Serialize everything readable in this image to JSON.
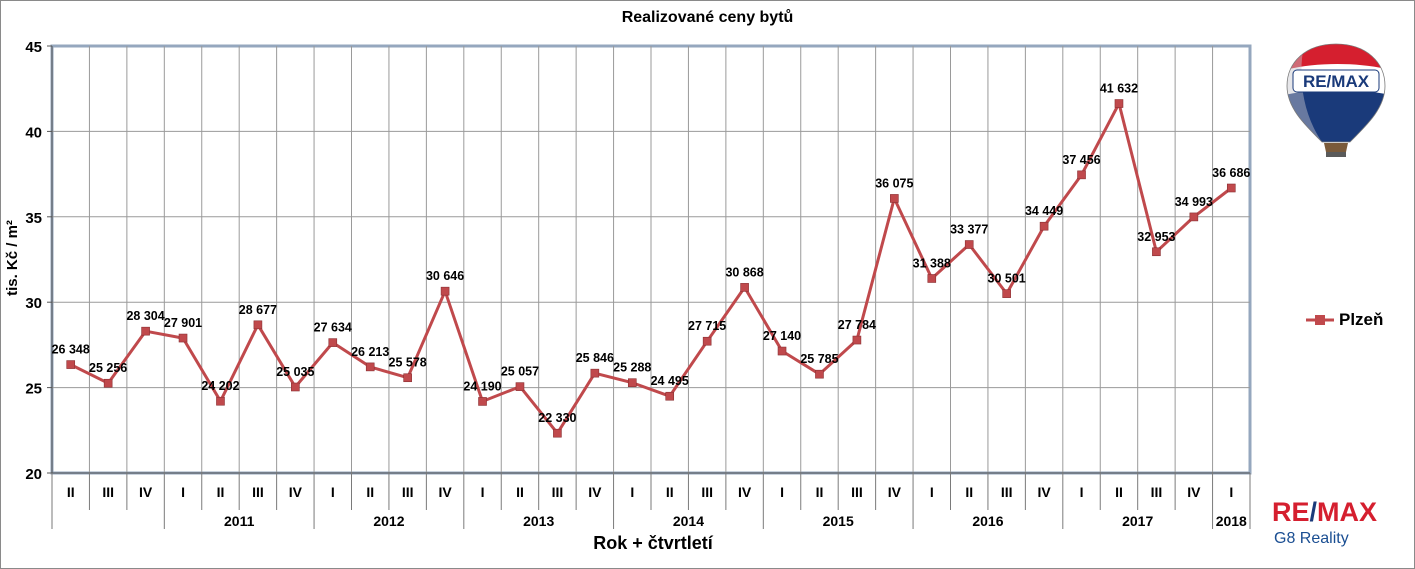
{
  "chart_data": {
    "type": "line",
    "title": "Realizované ceny bytů",
    "ylabel": "tis. Kč / m²",
    "xlabel": "Rok + čtvrtletí",
    "ylim": [
      20,
      45
    ],
    "yticks": [
      20,
      25,
      30,
      35,
      40,
      45
    ],
    "grid": true,
    "legend_position": "right",
    "quarters": [
      "II",
      "III",
      "IV",
      "I",
      "II",
      "III",
      "IV",
      "I",
      "II",
      "III",
      "IV",
      "I",
      "II",
      "III",
      "IV",
      "I",
      "II",
      "III",
      "IV",
      "I",
      "II",
      "III",
      "IV",
      "I",
      "II",
      "III",
      "IV",
      "I",
      "II",
      "III",
      "IV",
      "I"
    ],
    "years": [
      {
        "label": "",
        "quarters": 3
      },
      {
        "label": "2011",
        "quarters": 4
      },
      {
        "label": "2012",
        "quarters": 4
      },
      {
        "label": "2013",
        "quarters": 4
      },
      {
        "label": "2014",
        "quarters": 4
      },
      {
        "label": "2015",
        "quarters": 4
      },
      {
        "label": "2016",
        "quarters": 4
      },
      {
        "label": "2017",
        "quarters": 4
      },
      {
        "label": "2018",
        "quarters": 1
      }
    ],
    "series": [
      {
        "name": "Plzeň",
        "color": "#c0494c",
        "values": [
          26.348,
          25.256,
          28.304,
          27.901,
          24.202,
          28.677,
          25.035,
          27.634,
          26.213,
          25.578,
          30.646,
          24.19,
          25.057,
          22.33,
          25.846,
          25.288,
          24.495,
          27.715,
          30.868,
          27.14,
          25.785,
          27.784,
          36.075,
          31.388,
          33.377,
          30.501,
          34.449,
          37.456,
          41.632,
          32.953,
          34.993,
          36.686
        ],
        "labels": [
          "26 348",
          "25 256",
          "28 304",
          "27 901",
          "24 202",
          "28 677",
          "25 035",
          "27 634",
          "26 213",
          "25 578",
          "30 646",
          "24 190",
          "25 057",
          "22 330",
          "25 846",
          "25 288",
          "24 495",
          "27 715",
          "30 868",
          "27 140",
          "25 785",
          "27 784",
          "36 075",
          "31 388",
          "33 377",
          "30 501",
          "34 449",
          "37 456",
          "41 632",
          "32 953",
          "34 993",
          "36 686"
        ]
      }
    ]
  },
  "logo": {
    "balloon_text": "RE/MAX",
    "brand_re": "RE",
    "brand_slash": "/",
    "brand_max": "MAX",
    "subtitle": "G8 Reality"
  }
}
